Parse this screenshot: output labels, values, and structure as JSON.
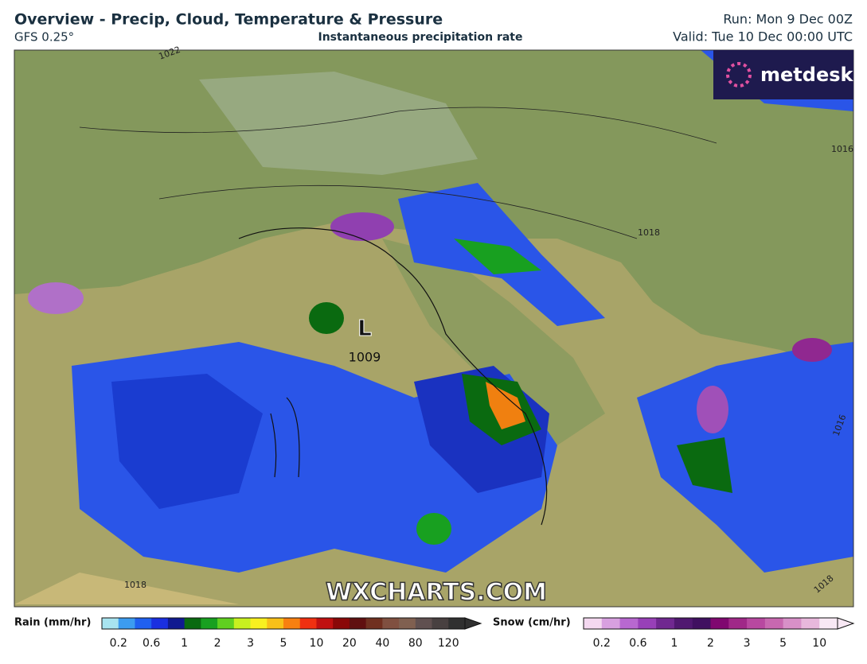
{
  "header": {
    "title": "Overview - Precip, Cloud, Temperature & Pressure",
    "model": "GFS 0.25°",
    "field": "Instantaneous precipitation rate",
    "run": "Run: Mon 9 Dec 00Z",
    "valid": "Valid: Tue 10 Dec 00:00 UTC"
  },
  "map": {
    "logo": "metdesk",
    "watermark": "WXCHARTS.COM",
    "low": {
      "symbol": "L",
      "pressure": "1009"
    },
    "isobar_labels": [
      "1022",
      "1018",
      "1016",
      "1018",
      "1018",
      "1016"
    ]
  },
  "legend": {
    "rain": {
      "title": "Rain (mm/hr)",
      "ticks": [
        0.2,
        0.6,
        1,
        2,
        3,
        5,
        10,
        20,
        40,
        80,
        120
      ],
      "colors": [
        "#a8e4f0",
        "#3c9cf0",
        "#2060f0",
        "#1a2fe0",
        "#101a90",
        "#0a6a10",
        "#18a020",
        "#60d020",
        "#c8f020",
        "#f8f020",
        "#f8c018",
        "#f88010",
        "#f03010",
        "#c01010",
        "#8a0808",
        "#601010",
        "#703020",
        "#805040",
        "#806050",
        "#605050",
        "#484040",
        "#303030"
      ]
    },
    "snow": {
      "title": "Snow (cm/hr)",
      "ticks": [
        0.2,
        0.6,
        1,
        2,
        3,
        5,
        10
      ],
      "colors": [
        "#f4d8f0",
        "#d8a0e0",
        "#b868d0",
        "#9840b8",
        "#702890",
        "#501870",
        "#401060",
        "#800870",
        "#a02888",
        "#b848a0",
        "#c868b0",
        "#d890c8",
        "#e8b8dc",
        "#f8e8f4"
      ]
    }
  }
}
